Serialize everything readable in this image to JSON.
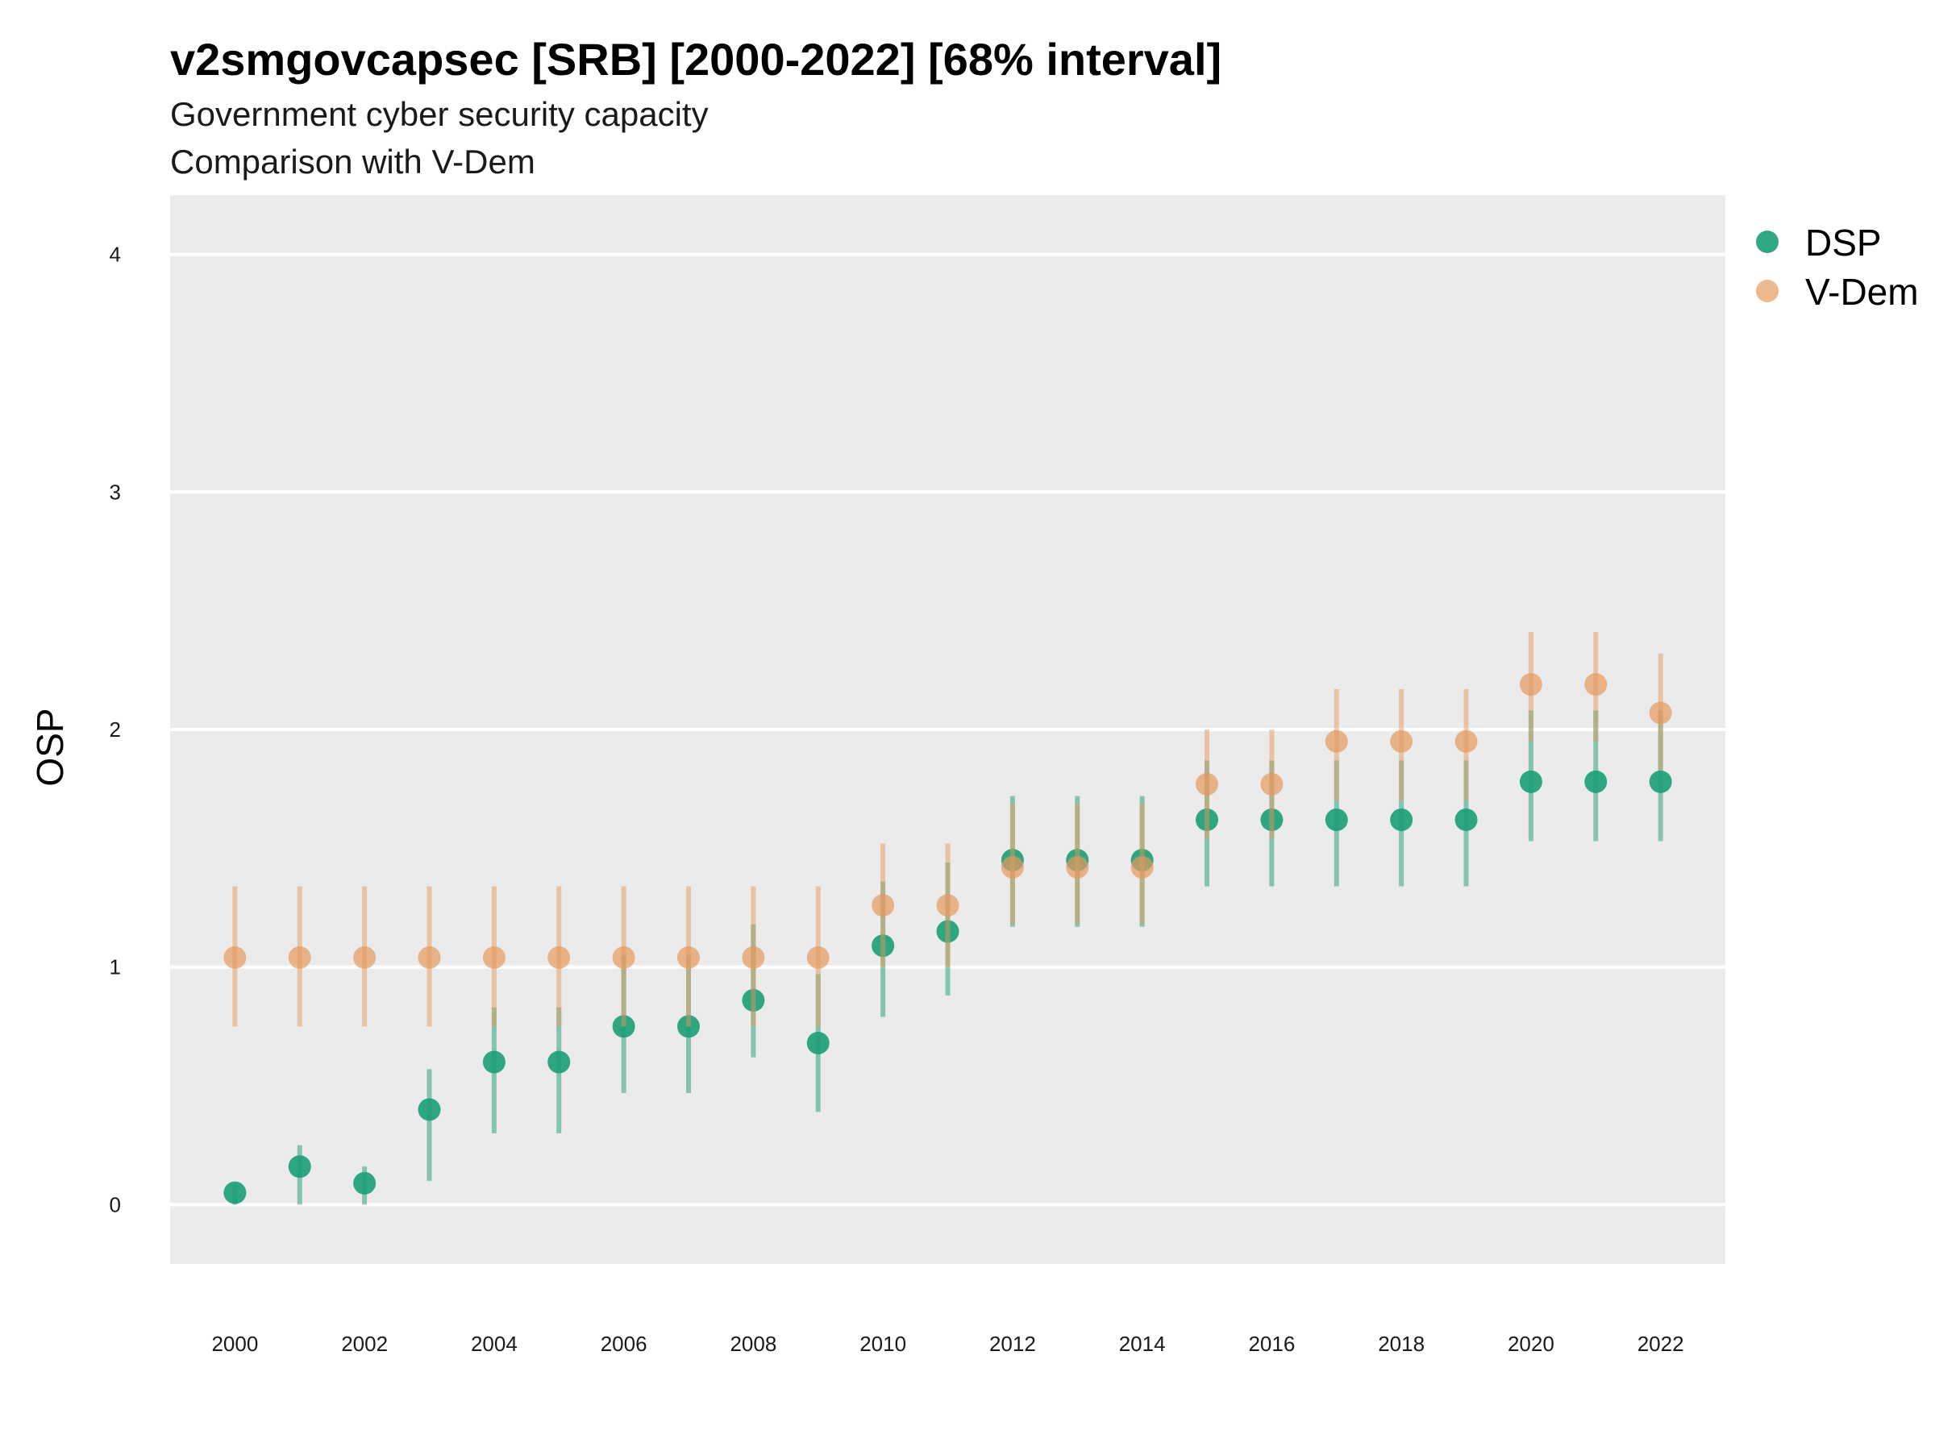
{
  "chart_data": {
    "type": "scatter",
    "title": "v2smgovcapsec [SRB] [2000-2022] [68% interval]",
    "subtitle": "Government cyber security capacity",
    "subtitle2": "Comparison with V-Dem",
    "xlabel": "",
    "ylabel": "OSP",
    "ylim": [
      -0.25,
      4.25
    ],
    "xlim": [
      1999.0,
      2023.0
    ],
    "y_ticks": [
      0,
      1,
      2,
      3,
      4
    ],
    "x_ticks": [
      2000,
      2002,
      2004,
      2006,
      2008,
      2010,
      2012,
      2014,
      2016,
      2018,
      2020,
      2022
    ],
    "grid": true,
    "legend_position": "right",
    "x": [
      2000,
      2001,
      2002,
      2003,
      2004,
      2005,
      2006,
      2007,
      2008,
      2009,
      2010,
      2011,
      2012,
      2013,
      2014,
      2015,
      2016,
      2017,
      2018,
      2019,
      2020,
      2021,
      2022
    ],
    "series": [
      {
        "name": "DSP",
        "color": "#1b9e77",
        "values": [
          0.05,
          0.16,
          0.09,
          0.4,
          0.6,
          0.6,
          0.75,
          0.75,
          0.86,
          0.68,
          1.09,
          1.15,
          1.45,
          1.45,
          1.45,
          1.62,
          1.62,
          1.62,
          1.62,
          1.62,
          1.78,
          1.78,
          1.78
        ],
        "lower": [
          0.0,
          0.0,
          0.0,
          0.1,
          0.3,
          0.3,
          0.47,
          0.47,
          0.62,
          0.39,
          0.79,
          0.88,
          1.17,
          1.17,
          1.17,
          1.34,
          1.34,
          1.34,
          1.34,
          1.34,
          1.53,
          1.53,
          1.53
        ],
        "upper": [
          0.09,
          0.25,
          0.16,
          0.57,
          0.83,
          0.83,
          1.05,
          1.05,
          1.18,
          0.97,
          1.36,
          1.44,
          1.72,
          1.72,
          1.72,
          1.87,
          1.87,
          1.87,
          1.87,
          1.87,
          2.08,
          2.08,
          2.08
        ]
      },
      {
        "name": "V-Dem",
        "color": "#e69a5e",
        "values": [
          1.04,
          1.04,
          1.04,
          1.04,
          1.04,
          1.04,
          1.04,
          1.04,
          1.04,
          1.04,
          1.26,
          1.26,
          1.42,
          1.42,
          1.42,
          1.77,
          1.77,
          1.95,
          1.95,
          1.95,
          2.19,
          2.19,
          2.07
        ],
        "lower": [
          0.75,
          0.75,
          0.75,
          0.75,
          0.75,
          0.75,
          0.75,
          0.75,
          0.75,
          0.75,
          1.0,
          1.0,
          1.18,
          1.18,
          1.18,
          1.54,
          1.54,
          1.7,
          1.7,
          1.7,
          1.95,
          1.95,
          1.83
        ],
        "upper": [
          1.34,
          1.34,
          1.34,
          1.34,
          1.34,
          1.34,
          1.34,
          1.34,
          1.34,
          1.34,
          1.52,
          1.52,
          1.69,
          1.69,
          1.69,
          2.0,
          2.0,
          2.17,
          2.17,
          2.17,
          2.41,
          2.41,
          2.32
        ]
      }
    ]
  }
}
